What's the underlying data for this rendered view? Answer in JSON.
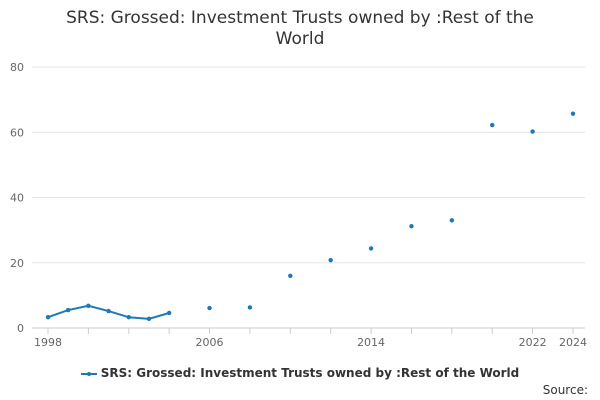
{
  "chart_data": {
    "type": "line",
    "title_lines": [
      "SRS: Grossed: Investment Trusts owned by :Rest of the",
      "World"
    ],
    "xlabel": "",
    "ylabel": "",
    "xlim": [
      1998,
      2024
    ],
    "ylim": [
      0,
      80
    ],
    "y_ticks": [
      0,
      20,
      40,
      60,
      80
    ],
    "x_tick_labels": [
      {
        "year": 1998,
        "label": "1998"
      },
      {
        "year": 2006,
        "label": "2006"
      },
      {
        "year": 2014,
        "label": "2014"
      },
      {
        "year": 2022,
        "label": "2022"
      },
      {
        "year": 2024,
        "label": "2024"
      }
    ],
    "x_minor_ticks": [
      1998,
      2000,
      2002,
      2004,
      2006,
      2008,
      2010,
      2012,
      2014,
      2016,
      2018,
      2020,
      2022,
      2024
    ],
    "grid": "horizontal",
    "legend_position": "bottom",
    "colors": {
      "series": "#1f78b4",
      "grid": "#e6e6e6",
      "axis": "#cccccc"
    },
    "series": [
      {
        "name": "SRS: Grossed: Investment Trusts owned by :Rest of the World",
        "points": [
          {
            "x": 1998,
            "y": 3.3
          },
          {
            "x": 1999,
            "y": 5.5
          },
          {
            "x": 2000,
            "y": 6.8
          },
          {
            "x": 2001,
            "y": 5.2
          },
          {
            "x": 2002,
            "y": 3.3
          },
          {
            "x": 2003,
            "y": 2.8
          },
          {
            "x": 2004,
            "y": 4.6
          },
          {
            "x": 2006,
            "y": 6.1
          },
          {
            "x": 2008,
            "y": 6.3
          },
          {
            "x": 2010,
            "y": 16.0
          },
          {
            "x": 2012,
            "y": 20.8
          },
          {
            "x": 2014,
            "y": 24.4
          },
          {
            "x": 2016,
            "y": 31.2
          },
          {
            "x": 2018,
            "y": 33.0
          },
          {
            "x": 2020,
            "y": 62.2
          },
          {
            "x": 2022,
            "y": 60.2
          },
          {
            "x": 2024,
            "y": 65.7
          }
        ]
      }
    ]
  },
  "legend": {
    "label": "SRS: Grossed: Investment Trusts owned by :Rest of the World"
  },
  "footer": {
    "source_label": "Source:"
  }
}
